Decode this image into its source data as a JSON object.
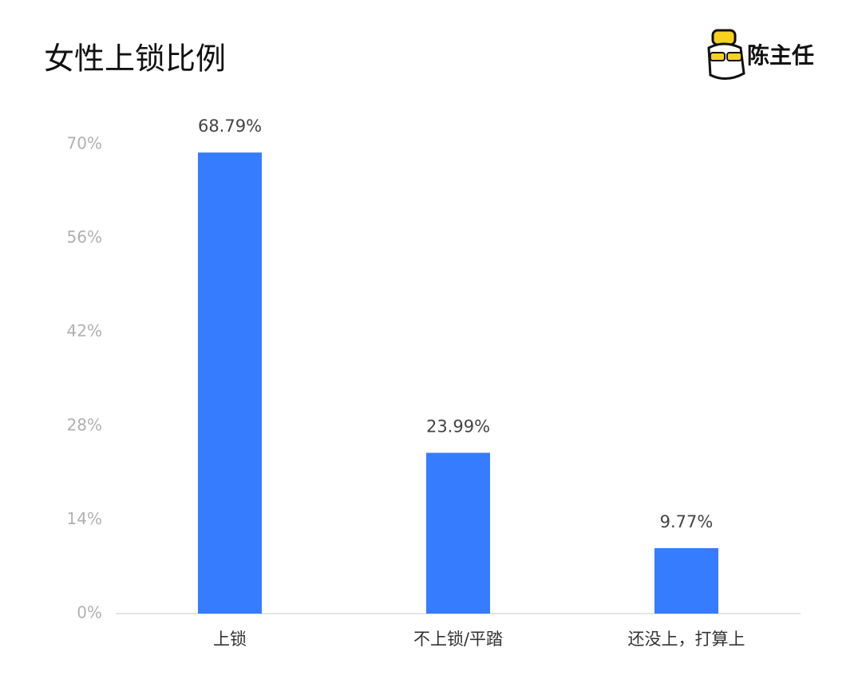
{
  "chart_data": {
    "type": "bar",
    "title": "女性上锁比例",
    "logo_text": "陈主任",
    "categories": [
      "上锁",
      "不上锁/平踏",
      "还没上，打算上"
    ],
    "values": [
      68.79,
      23.99,
      9.77
    ],
    "value_labels": [
      "68.79%",
      "23.99%",
      "9.77%"
    ],
    "color": "#367cfe",
    "ylim": [
      0,
      70
    ],
    "yticks": [
      {
        "value": 0,
        "label": "0%"
      },
      {
        "value": 14,
        "label": "14%"
      },
      {
        "value": 28,
        "label": "28%"
      },
      {
        "value": 42,
        "label": "42%"
      },
      {
        "value": 56,
        "label": "56%"
      },
      {
        "value": 70,
        "label": "70%"
      }
    ],
    "grid": false
  }
}
